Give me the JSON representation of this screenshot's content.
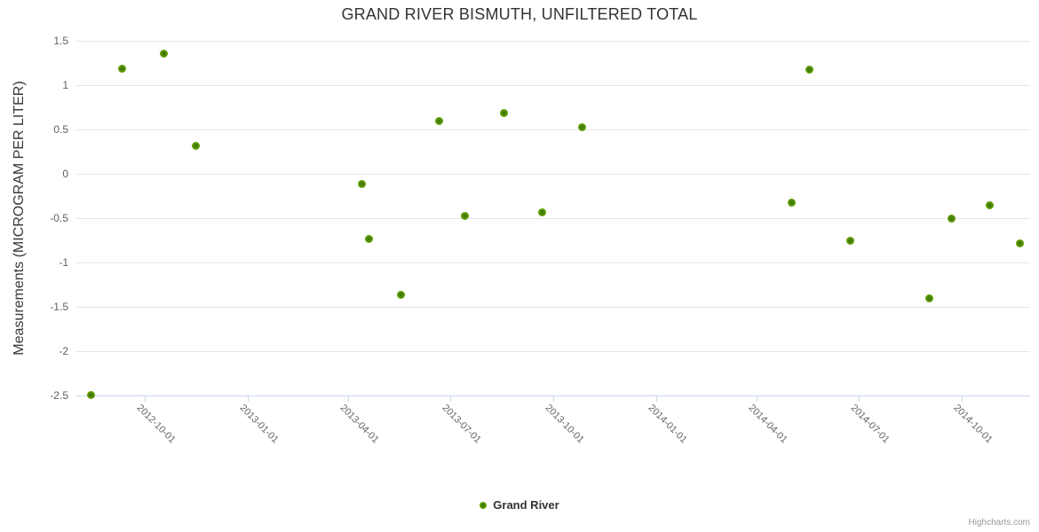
{
  "header": {
    "title": "GRAND RIVER BISMUTH, UNFILTERED TOTAL"
  },
  "credit": {
    "label": "Highcharts.com"
  },
  "legend": {
    "items": [
      {
        "label": "Grand River",
        "color": "#67a900"
      }
    ]
  },
  "chart_data": {
    "type": "scatter",
    "title": "GRAND RIVER BISMUTH, UNFILTERED TOTAL",
    "xlabel": "",
    "ylabel": "Measurements (MICROGRAM PER LITER)",
    "grid": true,
    "legend_position": "bottom-center",
    "xlim": [
      "2012-08-01",
      "2014-12-01"
    ],
    "ylim": [
      -2.5,
      1.5
    ],
    "xticks": [
      "2012-10-01",
      "2013-01-01",
      "2013-04-01",
      "2013-07-01",
      "2013-10-01",
      "2014-01-01",
      "2014-04-01",
      "2014-07-01",
      "2014-10-01"
    ],
    "yticks": [
      "1.5",
      "1",
      "0.5",
      "0",
      "-0.5",
      "-1",
      "-1.5",
      "-2",
      "-2.5"
    ],
    "series": [
      {
        "name": "Grand River",
        "color": "#67a900",
        "points": [
          {
            "date": "2012-08-14",
            "value": -2.49
          },
          {
            "date": "2012-09-11",
            "value": 1.19
          },
          {
            "date": "2012-10-18",
            "value": 1.36
          },
          {
            "date": "2012-11-16",
            "value": 0.32
          },
          {
            "date": "2013-04-13",
            "value": -0.11
          },
          {
            "date": "2013-04-19",
            "value": -0.73
          },
          {
            "date": "2013-05-18",
            "value": -1.36
          },
          {
            "date": "2013-06-21",
            "value": 0.6
          },
          {
            "date": "2013-07-14",
            "value": -0.47
          },
          {
            "date": "2013-08-18",
            "value": 0.69
          },
          {
            "date": "2013-09-21",
            "value": -0.43
          },
          {
            "date": "2013-10-27",
            "value": 0.53
          },
          {
            "date": "2014-05-02",
            "value": -0.32
          },
          {
            "date": "2014-05-18",
            "value": 1.18
          },
          {
            "date": "2014-06-23",
            "value": -0.75
          },
          {
            "date": "2014-09-02",
            "value": -1.4
          },
          {
            "date": "2014-09-22",
            "value": -0.5
          },
          {
            "date": "2014-10-26",
            "value": -0.35
          },
          {
            "date": "2014-11-22",
            "value": -0.78
          }
        ]
      }
    ]
  }
}
